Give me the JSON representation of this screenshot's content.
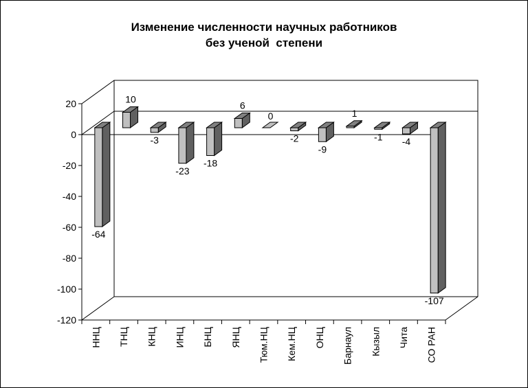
{
  "chart_data": {
    "type": "bar",
    "title": [
      "Изменение численности научных работников",
      "без ученой  степени"
    ],
    "categories": [
      "ННЦ",
      "ТНЦ",
      "КНЦ",
      "ИНЦ",
      "БНЦ",
      "ЯНЦ",
      "Тюм.НЦ",
      "Кем.НЦ",
      "ОНЦ",
      "Барнаул",
      "Кызыл",
      "Чита",
      "СО РАН"
    ],
    "values": [
      -64,
      10,
      -3,
      -23,
      -18,
      6,
      0,
      -2,
      -9,
      1,
      -1,
      -4,
      -107
    ],
    "data_labels": [
      "-64",
      "10",
      "-3",
      "-23",
      "-18",
      "6",
      "0",
      "-2",
      "-9",
      "1",
      "-1",
      "-4",
      "-107"
    ],
    "ylim": [
      -120,
      20
    ],
    "yticks": [
      "20",
      "0",
      "-20",
      "-40",
      "-60",
      "-80",
      "-100",
      "-120"
    ],
    "xlabel": "",
    "ylabel": "",
    "legend": "none",
    "grid": false,
    "style": "3d-bar"
  },
  "colors": {
    "bar_front": "#c0c0c0",
    "bar_side": "#606060",
    "bar_top": "#808080",
    "axis": "#000000",
    "background": "#ffffff"
  }
}
